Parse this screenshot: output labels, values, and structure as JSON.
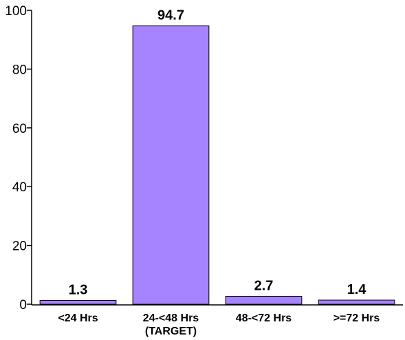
{
  "chart_data": {
    "type": "bar",
    "categories": [
      "<24 Hrs",
      "24-<48 Hrs\n(TARGET)",
      "48-<72 Hrs",
      ">=72 Hrs"
    ],
    "values": [
      1.3,
      94.7,
      2.7,
      1.4
    ],
    "data_labels": [
      "1.3",
      "94.7",
      "2.7",
      "1.4"
    ],
    "ylim": [
      0,
      100
    ],
    "yticks": [
      0,
      20,
      40,
      60,
      80,
      100
    ],
    "grid": false,
    "bar_color": "#a784ff",
    "bar_edge_color": "#000000",
    "title": "",
    "xlabel": "",
    "ylabel": ""
  }
}
